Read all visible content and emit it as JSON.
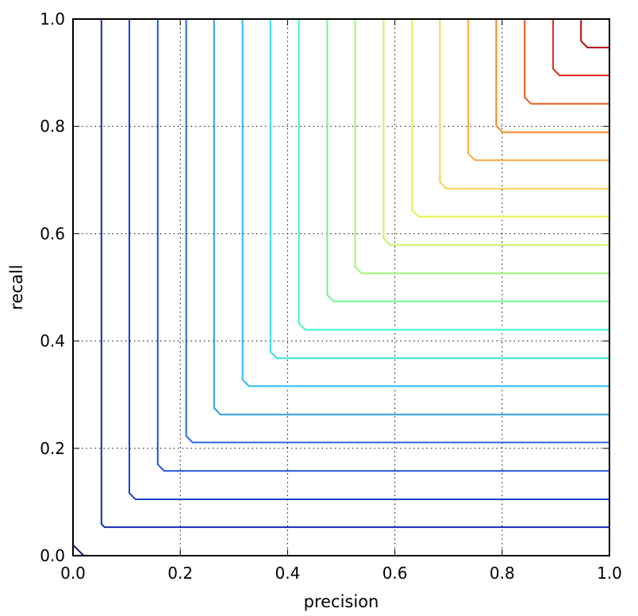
{
  "chart_data": {
    "type": "line",
    "title": "",
    "xlabel": "precision",
    "ylabel": "recall",
    "xlim": [
      0.0,
      1.0
    ],
    "ylim": [
      0.0,
      1.0
    ],
    "grid": true,
    "legend": "none",
    "x_ticks": [
      "0.0",
      "0.2",
      "0.4",
      "0.6",
      "0.8",
      "1.0"
    ],
    "y_ticks": [
      "0.0",
      "0.2",
      "0.4",
      "0.6",
      "0.8",
      "1.0"
    ],
    "x_tick_values": [
      0.0,
      0.2,
      0.4,
      0.6,
      0.8,
      1.0
    ],
    "y_tick_values": [
      0.0,
      0.2,
      0.4,
      0.6,
      0.8,
      1.0
    ],
    "contour_levels": [
      0.02,
      0.053,
      0.105,
      0.158,
      0.211,
      0.263,
      0.316,
      0.368,
      0.421,
      0.474,
      0.526,
      0.579,
      0.632,
      0.684,
      0.737,
      0.789,
      0.842,
      0.895,
      0.947
    ],
    "colors": [
      "#0c127f",
      "#122ab8",
      "#1c3fd6",
      "#2353e6",
      "#2a68ee",
      "#2f9be8",
      "#28b9f0",
      "#39e0e0",
      "#3af2c8",
      "#6ff58f",
      "#9af770",
      "#c7f45a",
      "#e7f247",
      "#f4d34a",
      "#f4a93a",
      "#f38623",
      "#ee5a1f",
      "#e22a1e",
      "#b30d12"
    ]
  }
}
